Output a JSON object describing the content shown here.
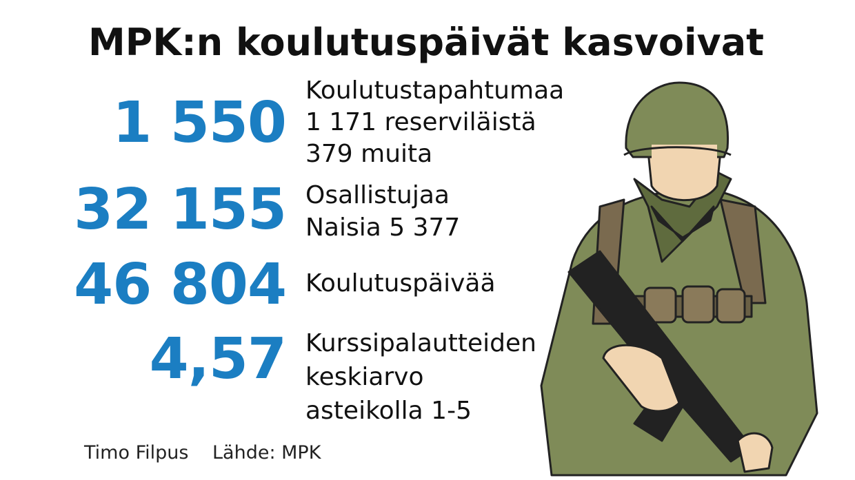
{
  "header": {
    "title": "MPK:n koulutuspäivät kasvoivat"
  },
  "stats": [
    {
      "value": "1 550",
      "lines": [
        "Koulutustapahtumaa",
        "1 171 reserviläistä",
        "379 muita"
      ]
    },
    {
      "value": "32 155",
      "lines": [
        "Osallistujaa",
        "Naisia 5 377"
      ]
    },
    {
      "value": "46 804",
      "lines": [
        "Koulutuspäivää"
      ]
    },
    {
      "value": "4,57",
      "lines": [
        "Kurssipalautteiden",
        "keskiarvo",
        "asteikolla 1-5"
      ]
    }
  ],
  "footer": {
    "author": "Timo Filpus",
    "source": "Lähde: MPK"
  }
}
